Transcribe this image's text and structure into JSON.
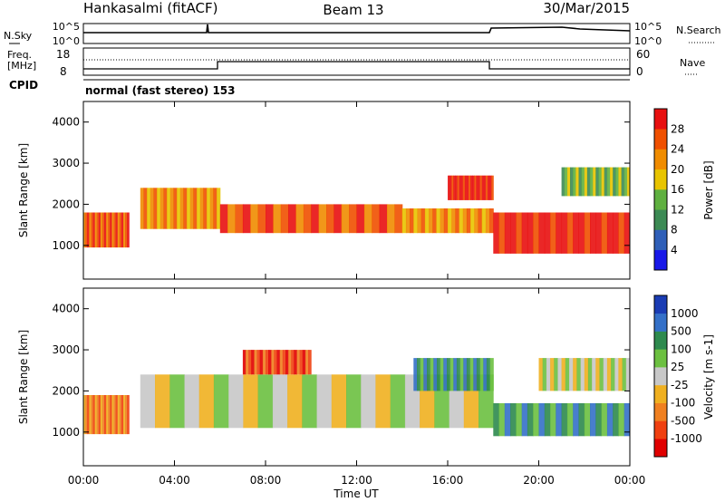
{
  "header": {
    "station": "Hankasalmi (fitACF)",
    "beam": "Beam 13",
    "date": "30/Mar/2015"
  },
  "top_panels": {
    "nsky_label": "N.Sky",
    "nsearch_label": "N.Search",
    "ticks_left_noise": [
      "10^5",
      "10^0"
    ],
    "ticks_right_noise": [
      "10^5",
      "10^0"
    ],
    "freq_label_1": "Freq.",
    "freq_label_2": "[MHz]",
    "freq_ticks": [
      "18",
      "8"
    ],
    "nave_label": "Nave",
    "nave_ticks": [
      "60",
      "0"
    ],
    "cpid_label": "CPID",
    "cpid_text": "normal (fast stereo) 153"
  },
  "x_axis": {
    "label": "Time UT",
    "ticks": [
      "00:00",
      "04:00",
      "08:00",
      "12:00",
      "16:00",
      "20:00",
      "00:00"
    ]
  },
  "chart_data": [
    {
      "type": "heatmap",
      "quantity": "Power",
      "ylabel": "Slant Range [km]",
      "ylim": [
        180,
        4500
      ],
      "yticks": [
        "1000",
        "2000",
        "3000",
        "4000"
      ],
      "xlim_hours": [
        0,
        24
      ],
      "colorbar_label": "Power [dB]",
      "colorbar_ticks": [
        "4",
        "8",
        "12",
        "16",
        "20",
        "24",
        "28"
      ],
      "colors": [
        "#1818e8",
        "#2f5fb8",
        "#3c8a54",
        "#5fb040",
        "#e8c400",
        "#f08c00",
        "#f05000",
        "#e81010"
      ],
      "echo_bands": [
        {
          "t0": 0.0,
          "t1": 2.0,
          "r0": 950,
          "r1": 1800,
          "level": 6
        },
        {
          "t0": 2.5,
          "t1": 6.0,
          "r0": 1400,
          "r1": 2400,
          "level": 5
        },
        {
          "t0": 6.0,
          "t1": 14.0,
          "r0": 1300,
          "r1": 2000,
          "level": 6
        },
        {
          "t0": 14.0,
          "t1": 18.0,
          "r0": 1300,
          "r1": 1900,
          "level": 5
        },
        {
          "t0": 16.0,
          "t1": 18.0,
          "r0": 2100,
          "r1": 2700,
          "level": 7
        },
        {
          "t0": 18.0,
          "t1": 24.0,
          "r0": 800,
          "r1": 1800,
          "level": 7
        },
        {
          "t0": 21.0,
          "t1": 24.0,
          "r0": 2200,
          "r1": 2900,
          "level": 3
        }
      ]
    },
    {
      "type": "heatmap",
      "quantity": "Velocity",
      "ylabel": "Slant Range [km]",
      "ylim": [
        180,
        4500
      ],
      "yticks": [
        "1000",
        "2000",
        "3000",
        "4000"
      ],
      "xlim_hours": [
        0,
        24
      ],
      "colorbar_label": "Velocity [m s-1]",
      "colorbar_ticks": [
        "1000",
        "500",
        "100",
        "25",
        "-25",
        "-100",
        "-500",
        "-1000"
      ],
      "colors": [
        "#1a3cb4",
        "#3470c8",
        "#2e8a4e",
        "#6cc040",
        "#c8c8c8",
        "#f0b020",
        "#f08020",
        "#f04010",
        "#e00000"
      ],
      "echo_bands": [
        {
          "t0": 0.0,
          "t1": 2.0,
          "r0": 950,
          "r1": 1900,
          "level": 6
        },
        {
          "t0": 2.5,
          "t1": 18.0,
          "r0": 1100,
          "r1": 2400,
          "level": 4
        },
        {
          "t0": 7.0,
          "t1": 10.0,
          "r0": 2400,
          "r1": 3000,
          "level": 7
        },
        {
          "t0": 14.5,
          "t1": 18.0,
          "r0": 2000,
          "r1": 2800,
          "level": 2
        },
        {
          "t0": 18.0,
          "t1": 24.0,
          "r0": 900,
          "r1": 1700,
          "level": 2
        },
        {
          "t0": 20.0,
          "t1": 24.0,
          "r0": 2000,
          "r1": 2800,
          "level": 4
        }
      ]
    }
  ]
}
